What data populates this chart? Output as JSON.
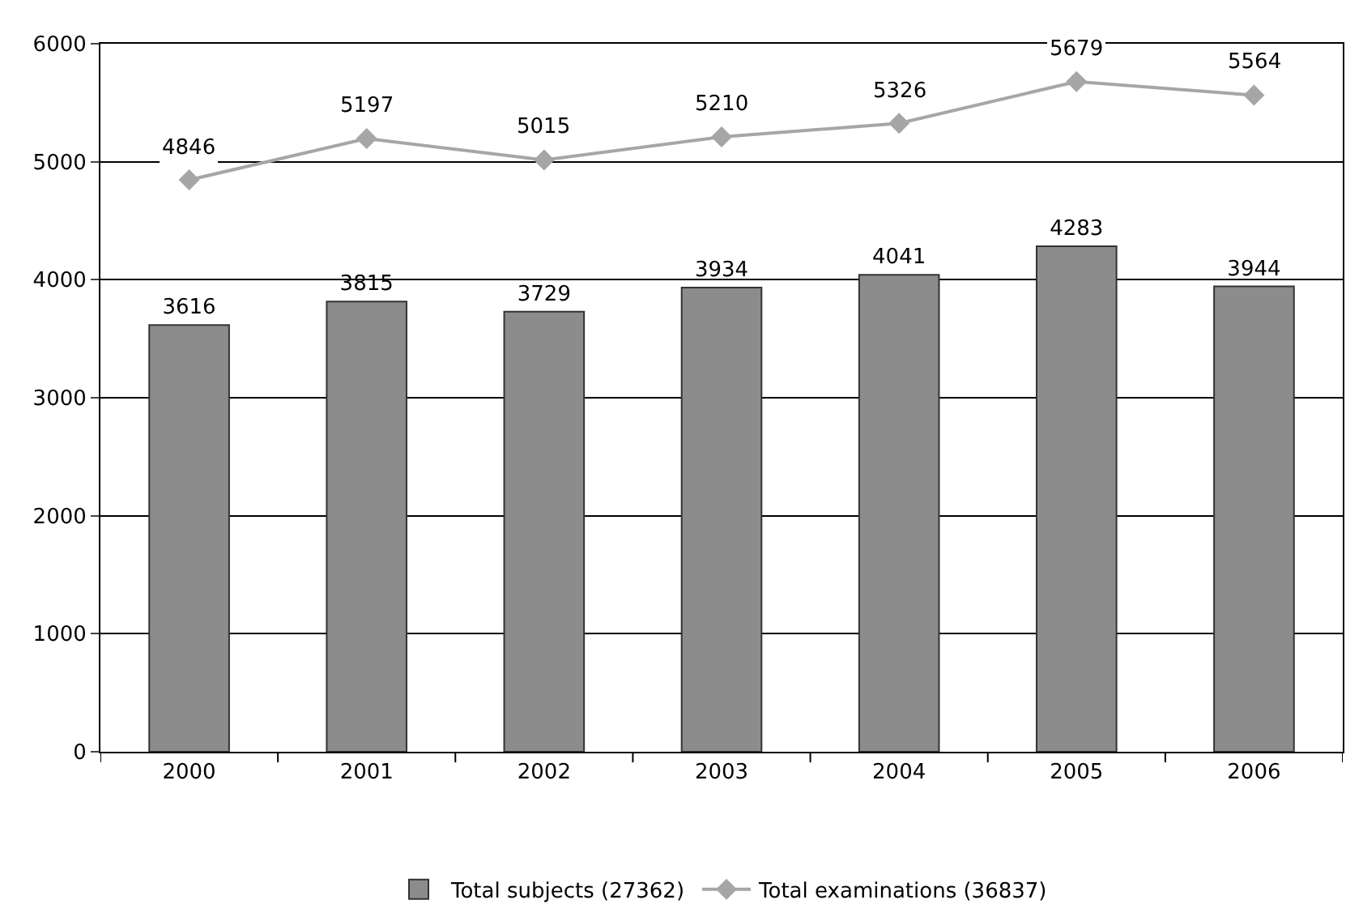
{
  "chart_data": {
    "type": "bar",
    "categories": [
      "2000",
      "2001",
      "2002",
      "2003",
      "2004",
      "2005",
      "2006"
    ],
    "series": [
      {
        "name": "Total subjects (27362)",
        "color": "#8c8c8c",
        "values": [
          3616,
          3815,
          3729,
          3934,
          4041,
          4283,
          3944
        ]
      },
      {
        "name": "Total examinations (36837)",
        "type": "line",
        "color": "#a6a6a6",
        "values": [
          4846,
          5197,
          5015,
          5210,
          5326,
          5679,
          5564
        ]
      }
    ],
    "ylim": [
      0,
      6000
    ],
    "yticks": [
      0,
      1000,
      2000,
      3000,
      4000,
      5000,
      6000
    ],
    "grid": "y",
    "legend": "bottom",
    "marker": "diamond",
    "line_style": "solid",
    "data_labels": true
  }
}
